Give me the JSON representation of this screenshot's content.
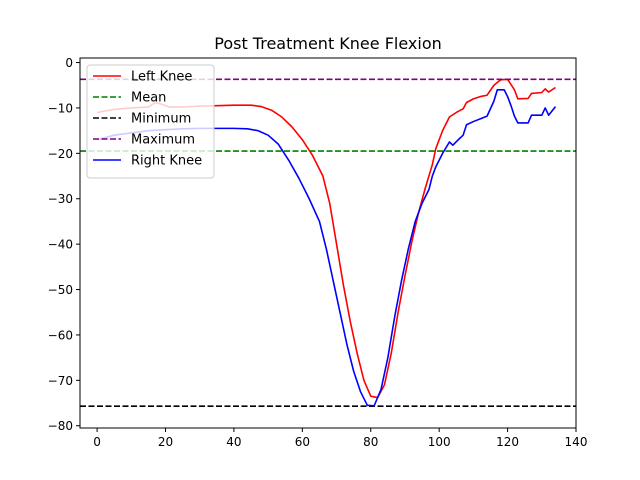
{
  "chart_data": {
    "type": "line",
    "title": "Post Treatment Knee Flexion",
    "xlabel": "",
    "ylabel": "",
    "xlim": [
      -5,
      140
    ],
    "ylim": [
      -80.5,
      1
    ],
    "x_ticks": [
      0,
      20,
      40,
      60,
      80,
      100,
      120,
      140
    ],
    "y_ticks": [
      0,
      -10,
      -20,
      -30,
      -40,
      -50,
      -60,
      -70,
      -80
    ],
    "grid": false,
    "legend_position": "upper-left",
    "series": [
      {
        "name": "Left Knee",
        "color": "#ff0000",
        "style": "solid",
        "points": [
          [
            0,
            -11
          ],
          [
            5,
            -10.3
          ],
          [
            10,
            -10
          ],
          [
            15,
            -9.8
          ],
          [
            17,
            -8.8
          ],
          [
            19,
            -9.2
          ],
          [
            21,
            -9.8
          ],
          [
            25,
            -9.8
          ],
          [
            30,
            -9.6
          ],
          [
            35,
            -9.5
          ],
          [
            40,
            -9.4
          ],
          [
            45,
            -9.4
          ],
          [
            48,
            -9.7
          ],
          [
            51,
            -10.5
          ],
          [
            54,
            -12
          ],
          [
            57,
            -14.2
          ],
          [
            60,
            -17
          ],
          [
            63,
            -20.5
          ],
          [
            66,
            -25
          ],
          [
            68,
            -31
          ],
          [
            70,
            -40
          ],
          [
            72,
            -49
          ],
          [
            74,
            -57
          ],
          [
            76,
            -64
          ],
          [
            78,
            -70
          ],
          [
            80,
            -73.5
          ],
          [
            82,
            -73.8
          ],
          [
            84,
            -71
          ],
          [
            86,
            -64
          ],
          [
            88,
            -55
          ],
          [
            90,
            -47
          ],
          [
            92,
            -39.5
          ],
          [
            94,
            -33
          ],
          [
            96,
            -27.5
          ],
          [
            98,
            -22.5
          ],
          [
            99,
            -19
          ],
          [
            101,
            -15
          ],
          [
            103,
            -12
          ],
          [
            105,
            -11
          ],
          [
            107,
            -10.2
          ],
          [
            108,
            -8.8
          ],
          [
            110,
            -8
          ],
          [
            112,
            -7.5
          ],
          [
            114,
            -7.2
          ],
          [
            116,
            -5
          ],
          [
            118,
            -3.8
          ],
          [
            120,
            -3.7
          ],
          [
            122,
            -6
          ],
          [
            123,
            -8
          ],
          [
            126,
            -7.9
          ],
          [
            127,
            -6.8
          ],
          [
            130,
            -6.6
          ],
          [
            131,
            -5.8
          ],
          [
            132,
            -6.5
          ],
          [
            134,
            -5.5
          ]
        ]
      },
      {
        "name": "Mean",
        "color": "#008000",
        "style": "dashed",
        "y": -19.5
      },
      {
        "name": "Minimum",
        "color": "#000000",
        "style": "dashed",
        "y": -75.7
      },
      {
        "name": "Maximum",
        "color": "#800080",
        "style": "dashed",
        "y": -3.7
      },
      {
        "name": "Right Knee",
        "color": "#0000ff",
        "style": "solid",
        "points": [
          [
            0,
            -17
          ],
          [
            5,
            -16
          ],
          [
            10,
            -15.5
          ],
          [
            15,
            -15
          ],
          [
            20,
            -14.8
          ],
          [
            25,
            -14.6
          ],
          [
            30,
            -14.5
          ],
          [
            35,
            -14.5
          ],
          [
            40,
            -14.5
          ],
          [
            44,
            -14.6
          ],
          [
            47,
            -15
          ],
          [
            50,
            -16
          ],
          [
            53,
            -18
          ],
          [
            56,
            -21.5
          ],
          [
            59,
            -25.5
          ],
          [
            62,
            -30
          ],
          [
            65,
            -35
          ],
          [
            67,
            -41
          ],
          [
            69,
            -48
          ],
          [
            71,
            -55
          ],
          [
            73,
            -62
          ],
          [
            75,
            -68
          ],
          [
            77,
            -72.5
          ],
          [
            79,
            -75.5
          ],
          [
            81,
            -75.6
          ],
          [
            83,
            -72
          ],
          [
            85,
            -65
          ],
          [
            87,
            -56
          ],
          [
            89,
            -48
          ],
          [
            91,
            -41
          ],
          [
            93,
            -35
          ],
          [
            95,
            -31
          ],
          [
            97,
            -28
          ],
          [
            98,
            -25
          ],
          [
            99,
            -23
          ],
          [
            101,
            -20
          ],
          [
            103,
            -17.5
          ],
          [
            104,
            -18.2
          ],
          [
            106,
            -16.7
          ],
          [
            107,
            -16
          ],
          [
            108,
            -13.7
          ],
          [
            110,
            -13
          ],
          [
            112,
            -12.4
          ],
          [
            114,
            -11.8
          ],
          [
            116,
            -8.5
          ],
          [
            117,
            -6
          ],
          [
            119,
            -6
          ],
          [
            120,
            -7.5
          ],
          [
            121,
            -9.5
          ],
          [
            122,
            -11.8
          ],
          [
            123,
            -13.3
          ],
          [
            126,
            -13.3
          ],
          [
            127,
            -11.6
          ],
          [
            130,
            -11.6
          ],
          [
            131,
            -10
          ],
          [
            132,
            -11.6
          ],
          [
            134,
            -9.7
          ]
        ]
      }
    ]
  }
}
